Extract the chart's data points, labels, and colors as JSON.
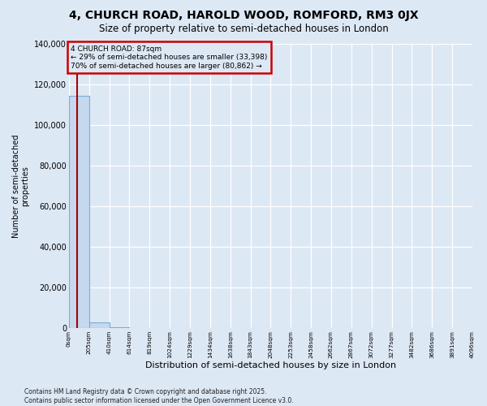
{
  "title": "4, CHURCH ROAD, HAROLD WOOD, ROMFORD, RM3 0JX",
  "subtitle": "Size of property relative to semi-detached houses in London",
  "xlabel": "Distribution of semi-detached houses by size in London",
  "ylabel": "Number of semi-detached\nproperties",
  "property_size": 87,
  "annotation_line1": "4 CHURCH ROAD: 87sqm",
  "annotation_line2": "← 29% of semi-detached houses are smaller (33,398)",
  "annotation_line3": "70% of semi-detached houses are larger (80,862) →",
  "bar_color": "#c5d8ee",
  "bar_edge_color": "#7aadd4",
  "vline_color": "#aa0000",
  "annotation_box_edge_color": "#cc0000",
  "background_color": "#dde8f5",
  "plot_bg_color": "#dde8f5",
  "grid_color": "#c0cfe0",
  "ylim": [
    0,
    140000
  ],
  "yticks": [
    0,
    20000,
    40000,
    60000,
    80000,
    100000,
    120000,
    140000
  ],
  "bin_edges": [
    0,
    205,
    410,
    614,
    819,
    1024,
    1229,
    1434,
    1638,
    1843,
    2048,
    2253,
    2458,
    2662,
    2867,
    3072,
    3277,
    3482,
    3686,
    3891,
    4096
  ],
  "bar_heights": [
    114260,
    2800,
    500,
    180,
    80,
    40,
    25,
    15,
    10,
    8,
    6,
    5,
    4,
    3,
    3,
    2,
    2,
    1,
    1,
    1
  ],
  "footer_line1": "Contains HM Land Registry data © Crown copyright and database right 2025.",
  "footer_line2": "Contains public sector information licensed under the Open Government Licence v3.0."
}
